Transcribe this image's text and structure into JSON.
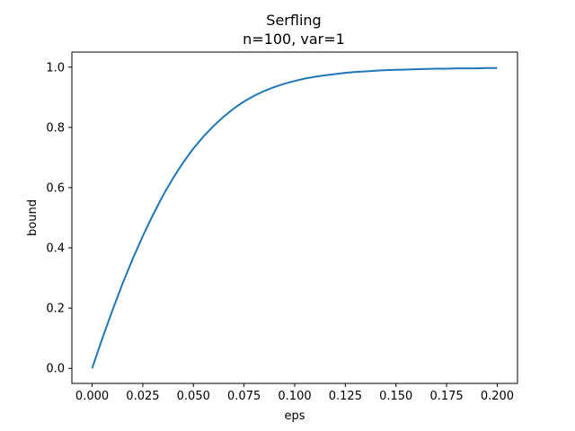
{
  "chart_data": {
    "type": "line",
    "title": "Serfling",
    "subtitle": "n=100, var=1",
    "xlabel": "eps",
    "ylabel": "bound",
    "xlim": [
      -0.01,
      0.21
    ],
    "ylim": [
      -0.05,
      1.05
    ],
    "grid": false,
    "x_ticks": [
      0.0,
      0.025,
      0.05,
      0.075,
      0.1,
      0.125,
      0.15,
      0.175,
      0.2
    ],
    "x_tick_labels": [
      "0.000",
      "0.025",
      "0.050",
      "0.075",
      "0.100",
      "0.125",
      "0.150",
      "0.175",
      "0.200"
    ],
    "y_ticks": [
      0.0,
      0.2,
      0.4,
      0.6,
      0.8,
      1.0
    ],
    "y_tick_labels": [
      "0.0",
      "0.2",
      "0.4",
      "0.6",
      "0.8",
      "1.0"
    ],
    "series": [
      {
        "color": "#1f77b4",
        "x": [
          0.0,
          0.005,
          0.01,
          0.015,
          0.02,
          0.025,
          0.03,
          0.035,
          0.04,
          0.045,
          0.05,
          0.055,
          0.06,
          0.065,
          0.07,
          0.075,
          0.08,
          0.085,
          0.09,
          0.095,
          0.1,
          0.105,
          0.11,
          0.115,
          0.12,
          0.125,
          0.13,
          0.135,
          0.14,
          0.145,
          0.15,
          0.155,
          0.16,
          0.165,
          0.17,
          0.175,
          0.18,
          0.185,
          0.19,
          0.195,
          0.2
        ],
        "y": [
          0.0,
          0.099,
          0.192,
          0.281,
          0.363,
          0.439,
          0.509,
          0.574,
          0.632,
          0.684,
          0.73,
          0.77,
          0.805,
          0.836,
          0.863,
          0.886,
          0.905,
          0.921,
          0.934,
          0.945,
          0.954,
          0.962,
          0.968,
          0.973,
          0.977,
          0.981,
          0.984,
          0.986,
          0.988,
          0.99,
          0.991,
          0.992,
          0.993,
          0.994,
          0.995,
          0.995,
          0.996,
          0.996,
          0.996,
          0.997,
          0.997
        ]
      }
    ]
  }
}
